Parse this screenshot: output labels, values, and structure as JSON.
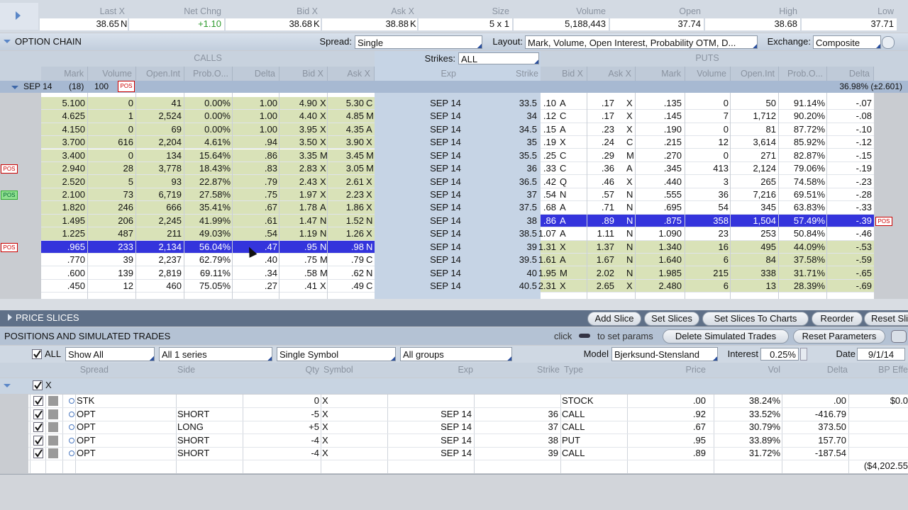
{
  "quote": {
    "headers": [
      "Last X",
      "Net Chng",
      "Bid X",
      "Ask X",
      "Size",
      "Volume",
      "Open",
      "High",
      "Low"
    ],
    "values": [
      "38.65",
      "+1.10",
      "38.68",
      "38.88",
      "5 x 1",
      "5,188,443",
      "37.74",
      "38.68",
      "37.71"
    ],
    "exchanges": [
      "N",
      null,
      "K",
      "K",
      null,
      null,
      null,
      null,
      null
    ]
  },
  "chain": {
    "title": "OPTION CHAIN",
    "spread_label": "Spread:",
    "spread": "Single",
    "layout_label": "Layout:",
    "layout": "Mark, Volume, Open Interest, Probability OTM, D...",
    "exchange_label": "Exchange:",
    "exchange": "Composite",
    "calls_label": "CALLS",
    "strikes_label": "Strikes:",
    "strikes": "ALL",
    "puts_label": "PUTS",
    "call_headers": [
      "Mark",
      "Volume",
      "Open.Int",
      "Prob.O...",
      "Delta",
      "Bid X",
      "Ask X"
    ],
    "mid_headers": [
      "Exp",
      "Strike"
    ],
    "put_headers": [
      "Bid X",
      "Ask X",
      "Mark",
      "Volume",
      "Open.Int",
      "Prob.O...",
      "Delta"
    ],
    "expiry": {
      "name": "SEP 14",
      "days": "(18)",
      "multiplier": "100",
      "badge": "POS",
      "iv": "36.98% (±2.601)"
    },
    "rows": [
      [
        "5.100",
        "0",
        "41",
        "0.00%",
        "1.00",
        "4.90",
        "X",
        "5.30",
        "C",
        "SEP 14",
        "33.5",
        ".10",
        "A",
        ".17",
        "X",
        ".135",
        "0",
        "50",
        "91.14%",
        "-.07"
      ],
      [
        "4.625",
        "1",
        "2,524",
        "0.00%",
        "1.00",
        "4.40",
        "X",
        "4.85",
        "M",
        "SEP 14",
        "34",
        ".12",
        "C",
        ".17",
        "X",
        ".145",
        "7",
        "1,712",
        "90.20%",
        "-.08"
      ],
      [
        "4.150",
        "0",
        "69",
        "0.00%",
        "1.00",
        "3.95",
        "X",
        "4.35",
        "A",
        "SEP 14",
        "34.5",
        ".15",
        "A",
        ".23",
        "X",
        ".190",
        "0",
        "81",
        "87.72%",
        "-.10"
      ],
      [
        "3.700",
        "616",
        "2,204",
        "4.61%",
        ".94",
        "3.50",
        "X",
        "3.90",
        "X",
        "SEP 14",
        "35",
        ".19",
        "X",
        ".24",
        "C",
        ".215",
        "12",
        "3,614",
        "85.92%",
        "-.12"
      ],
      [
        "3.400",
        "0",
        "134",
        "15.64%",
        ".86",
        "3.35",
        "M",
        "3.45",
        "M",
        "SEP 14",
        "35.5",
        ".25",
        "C",
        ".29",
        "M",
        ".270",
        "0",
        "271",
        "82.87%",
        "-.15"
      ],
      [
        "2.940",
        "28",
        "3,778",
        "18.43%",
        ".83",
        "2.83",
        "X",
        "3.05",
        "M",
        "SEP 14",
        "36",
        ".33",
        "C",
        ".36",
        "A",
        ".345",
        "413",
        "2,124",
        "79.06%",
        "-.19"
      ],
      [
        "2.520",
        "5",
        "93",
        "22.87%",
        ".79",
        "2.43",
        "X",
        "2.61",
        "X",
        "SEP 14",
        "36.5",
        ".42",
        "Q",
        ".46",
        "X",
        ".440",
        "3",
        "265",
        "74.58%",
        "-.23"
      ],
      [
        "2.100",
        "73",
        "6,719",
        "27.58%",
        ".75",
        "1.97",
        "X",
        "2.23",
        "X",
        "SEP 14",
        "37",
        ".54",
        "N",
        ".57",
        "N",
        ".555",
        "36",
        "7,216",
        "69.51%",
        "-.28"
      ],
      [
        "1.820",
        "246",
        "666",
        "35.41%",
        ".67",
        "1.78",
        "A",
        "1.86",
        "X",
        "SEP 14",
        "37.5",
        ".68",
        "A",
        ".71",
        "N",
        ".695",
        "54",
        "345",
        "63.83%",
        "-.33"
      ],
      [
        "1.495",
        "206",
        "2,245",
        "41.99%",
        ".61",
        "1.47",
        "N",
        "1.52",
        "N",
        "SEP 14",
        "38",
        ".86",
        "A",
        ".89",
        "N",
        ".875",
        "358",
        "1,504",
        "57.49%",
        "-.39"
      ],
      [
        "1.225",
        "487",
        "211",
        "49.03%",
        ".54",
        "1.19",
        "N",
        "1.26",
        "X",
        "SEP 14",
        "38.5",
        "1.07",
        "A",
        "1.11",
        "N",
        "1.090",
        "23",
        "253",
        "50.84%",
        "-.46"
      ],
      [
        ".965",
        "233",
        "2,134",
        "56.04%",
        ".47",
        ".95",
        "N",
        ".98",
        "N",
        "SEP 14",
        "39",
        "1.31",
        "X",
        "1.37",
        "N",
        "1.340",
        "16",
        "495",
        "44.09%",
        "-.53"
      ],
      [
        ".770",
        "39",
        "2,237",
        "62.79%",
        ".40",
        ".75",
        "M",
        ".79",
        "C",
        "SEP 14",
        "39.5",
        "1.61",
        "A",
        "1.67",
        "N",
        "1.640",
        "6",
        "84",
        "37.58%",
        "-.59"
      ],
      [
        ".600",
        "139",
        "2,819",
        "69.11%",
        ".34",
        ".58",
        "M",
        ".62",
        "N",
        "SEP 14",
        "40",
        "1.95",
        "M",
        "2.02",
        "N",
        "1.985",
        "215",
        "338",
        "31.71%",
        "-.65"
      ],
      [
        ".450",
        "12",
        "460",
        "75.05%",
        ".27",
        ".41",
        "X",
        ".49",
        "C",
        "SEP 14",
        "40.5",
        "2.31",
        "X",
        "2.65",
        "X",
        "2.480",
        "6",
        "13",
        "28.39%",
        "-.69"
      ]
    ],
    "badges": [
      null,
      null,
      null,
      null,
      null,
      "POS",
      null,
      "POS",
      null,
      "POS",
      null,
      "POS",
      null,
      null,
      null
    ]
  },
  "price_slices": {
    "title": "PRICE SLICES",
    "buttons": [
      "Add Slice",
      "Set Slices",
      "Set Slices To Charts",
      "Reorder",
      "Reset Sli"
    ]
  },
  "positions": {
    "title": "POSITIONS AND SIMULATED TRADES",
    "hint_click": "click",
    "hint_rest": "to set params",
    "buttons": [
      "Delete Simulated Trades",
      "Reset Parameters"
    ],
    "filters": {
      "all": "ALL",
      "show": "Show All",
      "series": "All 1 series",
      "symbol": "Single Symbol",
      "groups": "All groups",
      "model_label": "Model",
      "model": "Bjerksund-Stensland",
      "interest_label": "Interest",
      "interest": "0.25%",
      "date_label": "Date",
      "date": "9/1/14"
    },
    "headers": [
      "Spread",
      "Side",
      "Qty",
      "Symbol",
      "Exp",
      "Strike",
      "Type",
      "Price",
      "Vol",
      "Delta",
      "BP Effe"
    ],
    "group": "X",
    "rows": [
      [
        "STK",
        null,
        "0",
        "X",
        null,
        null,
        "STOCK",
        ".00",
        "38.24%",
        ".00",
        "$0.0"
      ],
      [
        "OPT",
        "SHORT",
        "-5",
        "X",
        "SEP 14",
        "36",
        "CALL",
        ".92",
        "33.52%",
        "-416.79",
        null
      ],
      [
        "OPT",
        "LONG",
        "+5",
        "X",
        "SEP 14",
        "37",
        "CALL",
        ".67",
        "30.79%",
        "373.50",
        null
      ],
      [
        "OPT",
        "SHORT",
        "-4",
        "X",
        "SEP 14",
        "38",
        "PUT",
        ".95",
        "33.89%",
        "157.70",
        null
      ],
      [
        "OPT",
        "SHORT",
        "-4",
        "X",
        "SEP 14",
        "39",
        "CALL",
        ".89",
        "31.72%",
        "-187.54",
        null
      ]
    ],
    "total": "($4,202.55"
  }
}
